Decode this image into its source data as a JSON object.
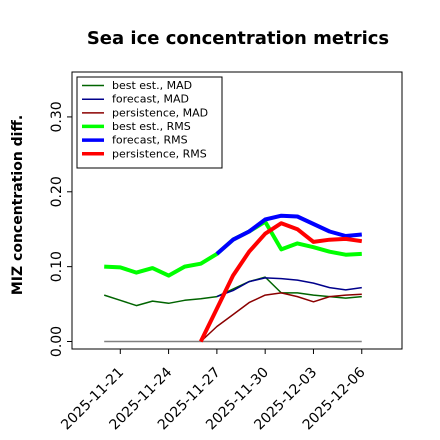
{
  "chart_data": {
    "type": "line",
    "title": "Sea ice concentration metrics",
    "xlabel": "",
    "ylabel": "MIZ concentration diff.",
    "ylim": [
      -0.01,
      0.36
    ],
    "yticks": [
      "0.00",
      "0.10",
      "0.20",
      "0.30"
    ],
    "ytick_values": [
      0.0,
      0.1,
      0.2,
      0.3
    ],
    "xticks": [
      "2025-11-21",
      "2025-11-24",
      "2025-11-27",
      "2025-11-30",
      "2025-12-03",
      "2025-12-06"
    ],
    "xtick_values": [
      0,
      3,
      6,
      9,
      12,
      15
    ],
    "xtick_colors": [
      "#000000",
      "#000000",
      "#008000",
      "#000000",
      "#000000",
      "#000000"
    ],
    "xlim": [
      -3,
      17.5
    ],
    "grid": false,
    "legend_position": "top-left",
    "zero_line": {
      "y": 0.0,
      "x": [
        -1,
        15
      ],
      "color": "#808080"
    },
    "series": [
      {
        "name": "best est., MAD",
        "color": "#006400",
        "width": 1.5,
        "x": [
          -1,
          0,
          1,
          2,
          3,
          4,
          5,
          6,
          7,
          8,
          9,
          10,
          11,
          12,
          13,
          14,
          15
        ],
        "y": [
          0.062,
          0.055,
          0.048,
          0.054,
          0.051,
          0.055,
          0.057,
          0.06,
          0.07,
          0.08,
          0.086,
          0.065,
          0.065,
          0.062,
          0.06,
          0.058,
          0.06
        ]
      },
      {
        "name": "forecast,  MAD",
        "color": "#00008b",
        "width": 1.5,
        "x": [
          6,
          7,
          8,
          9,
          10,
          11,
          12,
          13,
          14,
          15
        ],
        "y": [
          0.06,
          0.068,
          0.08,
          0.085,
          0.084,
          0.082,
          0.078,
          0.072,
          0.069,
          0.072
        ]
      },
      {
        "name": "persistence, MAD",
        "color": "#8b0000",
        "width": 1.5,
        "x": [
          5,
          6,
          7,
          8,
          9,
          10,
          11,
          12,
          13,
          14,
          15
        ],
        "y": [
          0.0,
          0.02,
          0.036,
          0.052,
          0.062,
          0.065,
          0.06,
          0.053,
          0.06,
          0.062,
          0.063
        ]
      },
      {
        "name": "best est., RMS",
        "color": "#00ff00",
        "width": 4,
        "x": [
          -1,
          0,
          1,
          2,
          3,
          4,
          5,
          6,
          7,
          8,
          9,
          10,
          11,
          12,
          13,
          14,
          15
        ],
        "y": [
          0.1,
          0.099,
          0.092,
          0.098,
          0.088,
          0.1,
          0.104,
          0.117,
          0.136,
          0.147,
          0.16,
          0.123,
          0.131,
          0.126,
          0.12,
          0.116,
          0.117
        ]
      },
      {
        "name": "forecast,  RMS",
        "color": "#0000ff",
        "width": 4,
        "x": [
          6,
          7,
          8,
          9,
          10,
          11,
          12,
          13,
          14,
          15
        ],
        "y": [
          0.117,
          0.136,
          0.147,
          0.163,
          0.168,
          0.167,
          0.157,
          0.147,
          0.141,
          0.143
        ]
      },
      {
        "name": "persistence, RMS",
        "color": "#ff0000",
        "width": 4,
        "x": [
          5,
          6,
          7,
          8,
          9,
          10,
          11,
          12,
          13,
          14,
          15
        ],
        "y": [
          0.0,
          0.044,
          0.088,
          0.12,
          0.144,
          0.158,
          0.15,
          0.133,
          0.136,
          0.137,
          0.134
        ]
      }
    ]
  }
}
